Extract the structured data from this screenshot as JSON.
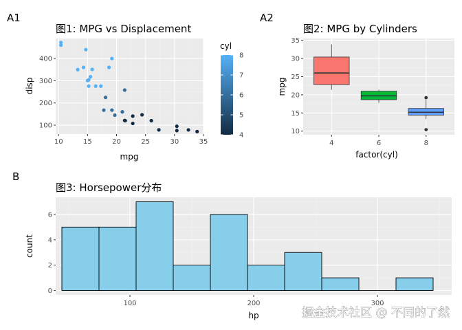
{
  "chart_data": [
    {
      "id": "A1",
      "panel_tag": "A1",
      "type": "scatter",
      "title": "图1: MPG vs Displacement",
      "xlabel": "mpg",
      "ylabel": "disp",
      "xlim": [
        9.5,
        35
      ],
      "ylim": [
        60,
        490
      ],
      "xticks": [
        10,
        15,
        20,
        25,
        30,
        35
      ],
      "yticks": [
        100,
        200,
        300,
        400
      ],
      "legend": {
        "title": "cyl",
        "ticks": [
          4,
          5,
          6,
          7,
          8
        ],
        "range": [
          4,
          8
        ],
        "low_color": "#132B43",
        "high_color": "#56B1F7",
        "position": "right"
      },
      "points": [
        {
          "x": 21.0,
          "y": 160,
          "cyl": 6
        },
        {
          "x": 21.0,
          "y": 160,
          "cyl": 6
        },
        {
          "x": 22.8,
          "y": 108,
          "cyl": 4
        },
        {
          "x": 21.4,
          "y": 258,
          "cyl": 6
        },
        {
          "x": 18.7,
          "y": 360,
          "cyl": 8
        },
        {
          "x": 18.1,
          "y": 225,
          "cyl": 6
        },
        {
          "x": 14.3,
          "y": 360,
          "cyl": 8
        },
        {
          "x": 24.4,
          "y": 146.7,
          "cyl": 4
        },
        {
          "x": 22.8,
          "y": 140.8,
          "cyl": 4
        },
        {
          "x": 19.2,
          "y": 167.6,
          "cyl": 6
        },
        {
          "x": 17.8,
          "y": 167.6,
          "cyl": 6
        },
        {
          "x": 16.4,
          "y": 275.8,
          "cyl": 8
        },
        {
          "x": 17.3,
          "y": 275.8,
          "cyl": 8
        },
        {
          "x": 15.2,
          "y": 275.8,
          "cyl": 8
        },
        {
          "x": 10.4,
          "y": 472,
          "cyl": 8
        },
        {
          "x": 10.4,
          "y": 460,
          "cyl": 8
        },
        {
          "x": 14.7,
          "y": 440,
          "cyl": 8
        },
        {
          "x": 32.4,
          "y": 78.7,
          "cyl": 4
        },
        {
          "x": 30.4,
          "y": 75.7,
          "cyl": 4
        },
        {
          "x": 33.9,
          "y": 71.1,
          "cyl": 4
        },
        {
          "x": 21.5,
          "y": 120.1,
          "cyl": 4
        },
        {
          "x": 15.5,
          "y": 318,
          "cyl": 8
        },
        {
          "x": 15.2,
          "y": 304,
          "cyl": 8
        },
        {
          "x": 13.3,
          "y": 350,
          "cyl": 8
        },
        {
          "x": 19.2,
          "y": 400,
          "cyl": 8
        },
        {
          "x": 27.3,
          "y": 79,
          "cyl": 4
        },
        {
          "x": 26.0,
          "y": 120.3,
          "cyl": 4
        },
        {
          "x": 30.4,
          "y": 95.1,
          "cyl": 4
        },
        {
          "x": 15.8,
          "y": 351,
          "cyl": 8
        },
        {
          "x": 19.7,
          "y": 145,
          "cyl": 6
        },
        {
          "x": 15.0,
          "y": 301,
          "cyl": 8
        },
        {
          "x": 21.4,
          "y": 121,
          "cyl": 4
        }
      ]
    },
    {
      "id": "A2",
      "panel_tag": "A2",
      "type": "boxplot",
      "title": "图2: MPG by Cylinders",
      "xlabel": "factor(cyl)",
      "ylabel": "mpg",
      "ylim": [
        9,
        35.5
      ],
      "yticks": [
        10,
        15,
        20,
        25,
        30,
        35
      ],
      "categories": [
        "4",
        "6",
        "8"
      ],
      "boxes": [
        {
          "category": "4",
          "lower_whisker": 21.4,
          "q1": 22.8,
          "median": 26.0,
          "q3": 30.4,
          "upper_whisker": 33.9,
          "outliers": [],
          "fill": "#F8766D"
        },
        {
          "category": "6",
          "lower_whisker": 17.8,
          "q1": 18.65,
          "median": 19.7,
          "q3": 21.0,
          "upper_whisker": 21.4,
          "outliers": [],
          "fill": "#00BA38"
        },
        {
          "category": "8",
          "lower_whisker": 13.3,
          "q1": 14.4,
          "median": 15.2,
          "q3": 16.25,
          "upper_whisker": 18.7,
          "outliers": [
            10.4,
            19.2
          ],
          "fill": "#619CFF"
        }
      ]
    },
    {
      "id": "B",
      "panel_tag": "B",
      "type": "bar",
      "title": "图3: Horsepower分布",
      "xlabel": "hp",
      "ylabel": "count",
      "xlim": [
        40,
        360
      ],
      "ylim": [
        -0.35,
        7.35
      ],
      "xticks": [
        100,
        200,
        300
      ],
      "yticks": [
        0,
        2,
        4,
        6
      ],
      "fill": "#87CEEB",
      "bins": [
        {
          "start": 45,
          "end": 75,
          "count": 5
        },
        {
          "start": 75,
          "end": 105,
          "count": 5
        },
        {
          "start": 105,
          "end": 135,
          "count": 7
        },
        {
          "start": 135,
          "end": 165,
          "count": 2
        },
        {
          "start": 165,
          "end": 195,
          "count": 6
        },
        {
          "start": 195,
          "end": 225,
          "count": 2
        },
        {
          "start": 225,
          "end": 255,
          "count": 3
        },
        {
          "start": 255,
          "end": 285,
          "count": 1
        },
        {
          "start": 285,
          "end": 315,
          "count": 0
        },
        {
          "start": 315,
          "end": 345,
          "count": 1
        }
      ]
    }
  ],
  "watermark": "掘金技术社区 @ 不同的了然"
}
